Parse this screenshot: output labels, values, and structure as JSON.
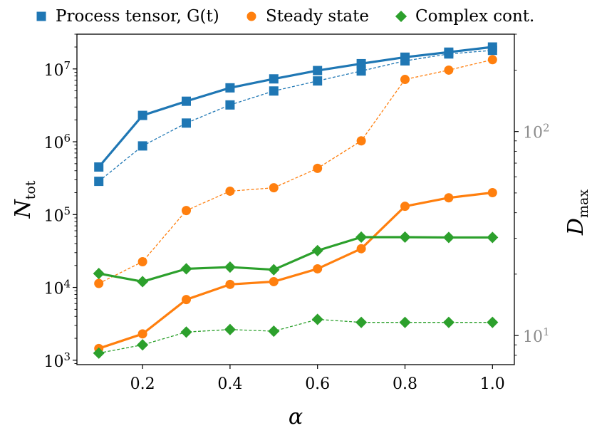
{
  "chart_data": {
    "type": "line",
    "legend": {
      "placement": "top",
      "entries": [
        {
          "label": "Process tensor, G(t)",
          "color": "#1f77b4",
          "marker": "square"
        },
        {
          "label": "Steady state",
          "color": "#ff7f0e",
          "marker": "circle"
        },
        {
          "label": "Complex cont.",
          "color": "#2ca02c",
          "marker": "diamond"
        }
      ]
    },
    "xlabel": "α",
    "ylabel_left": {
      "base": "N",
      "sub": "tot"
    },
    "ylabel_right": {
      "base": "D",
      "sub": "max"
    },
    "xlim": [
      0.05,
      1.05
    ],
    "xticks": [
      0.2,
      0.4,
      0.6,
      0.8,
      1.0
    ],
    "xtick_labels": [
      "0.2",
      "0.4",
      "0.6",
      "0.8",
      "1.0"
    ],
    "left_axis": {
      "scale": "log",
      "ylim": [
        870,
        30000000
      ],
      "ticks": [
        1000,
        10000,
        100000,
        1000000,
        10000000
      ],
      "tick_labels": [
        {
          "base": "10",
          "exp": "3"
        },
        {
          "base": "10",
          "exp": "4"
        },
        {
          "base": "10",
          "exp": "5"
        },
        {
          "base": "10",
          "exp": "6"
        },
        {
          "base": "10",
          "exp": "7"
        }
      ]
    },
    "right_axis": {
      "scale": "log",
      "color": "#8c8c8c",
      "ylim": [
        7.2,
        300
      ],
      "ticks": [
        10,
        100
      ],
      "tick_labels": [
        {
          "base": "10",
          "exp": "1"
        },
        {
          "base": "10",
          "exp": "2"
        }
      ]
    },
    "x": [
      0.1,
      0.2,
      0.3,
      0.4,
      0.5,
      0.6,
      0.7,
      0.8,
      0.9,
      1.0
    ],
    "series": [
      {
        "name": "Process tensor, G(t)",
        "axis": "left",
        "style": "solid",
        "color": "#1f77b4",
        "marker": "square",
        "values": [
          450000,
          2300000,
          3600000,
          5500000,
          7300000,
          9500000,
          11800000,
          14500000,
          17000000,
          20000000
        ]
      },
      {
        "axis": "right",
        "style": "dashed",
        "color": "#1f77b4",
        "marker": "square",
        "values": [
          57,
          85,
          110,
          135,
          158,
          177,
          198,
          222,
          240,
          250
        ]
      },
      {
        "name": "Steady state",
        "axis": "left",
        "style": "solid",
        "color": "#ff7f0e",
        "marker": "circle",
        "values": [
          1450,
          2300,
          6800,
          11000,
          12000,
          18000,
          34000,
          130000,
          170000,
          200000
        ]
      },
      {
        "axis": "right",
        "style": "dashed",
        "color": "#ff7f0e",
        "marker": "circle",
        "values": [
          18,
          23,
          41,
          51,
          53,
          66,
          90,
          180,
          200,
          225
        ]
      },
      {
        "name": "Complex cont.",
        "axis": "left",
        "style": "solid",
        "color": "#2ca02c",
        "marker": "diamond",
        "values": [
          15500,
          12000,
          18000,
          19000,
          17500,
          32000,
          49000,
          49000,
          48500,
          48500
        ]
      },
      {
        "axis": "right",
        "style": "dashed",
        "color": "#2ca02c",
        "marker": "diamond",
        "values": [
          8.2,
          9.0,
          10.4,
          10.7,
          10.5,
          12.0,
          11.6,
          11.6,
          11.6,
          11.6
        ]
      }
    ]
  }
}
